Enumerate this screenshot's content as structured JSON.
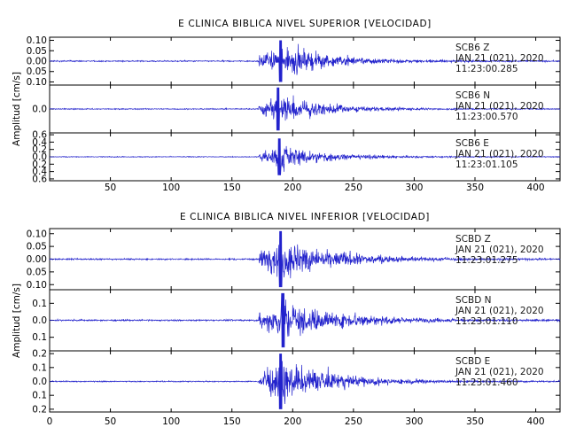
{
  "chart_data": [
    {
      "type": "line",
      "title": "E CLINICA BIBLICA NIVEL SUPERIOR [VELOCIDAD]",
      "ylabel": "Amplitud [cm/s]",
      "xlabel": "",
      "xlim": [
        0,
        420
      ],
      "x_ticks": [
        50,
        100,
        150,
        200,
        250,
        300,
        350,
        400
      ],
      "grid": false,
      "panels": [
        {
          "component": "Z",
          "ylim": [
            -0.115,
            0.115
          ],
          "y_ticks": [
            -0.1,
            -0.05,
            0.0,
            0.05,
            0.1
          ],
          "y_tick_labels": [
            "0.10",
            "0.05",
            "0.00",
            "0.05",
            "0.10"
          ],
          "annotation": [
            "SCB6   Z",
            "JAN 21 (021), 2020",
            "11:23:00.285"
          ],
          "waveform": {
            "noise": 0.004,
            "onset": 172,
            "peak_time": 190,
            "peak_amplitude": 0.1,
            "decay_end": 320
          }
        },
        {
          "component": "N",
          "ylim": [
            -0.2,
            0.2
          ],
          "y_ticks": [
            0.0
          ],
          "y_tick_labels": [
            "0.0"
          ],
          "annotation": [
            "SCB6   N",
            "JAN 21 (021), 2020",
            "11:23:00.570"
          ],
          "waveform": {
            "noise": 0.006,
            "onset": 172,
            "peak_time": 188,
            "peak_amplitude": 0.18,
            "decay_end": 300
          }
        },
        {
          "component": "E",
          "ylim": [
            -0.65,
            0.65
          ],
          "y_ticks": [
            -0.6,
            -0.4,
            -0.2,
            0.0,
            0.2,
            0.4,
            0.6
          ],
          "y_tick_labels": [
            "0.6",
            "0.4",
            "0.2",
            "0.0",
            "0.2",
            "0.4",
            "0.6"
          ],
          "annotation": [
            "SCB6   E",
            "JAN 21 (021), 2020",
            "11:23:01.105"
          ],
          "waveform": {
            "noise": 0.015,
            "onset": 172,
            "peak_time": 189,
            "peak_amplitude": 0.5,
            "decay_end": 300
          }
        }
      ]
    },
    {
      "type": "line",
      "title": "E CLINICA BIBLICA NIVEL INFERIOR [VELOCIDAD]",
      "ylabel": "Amplitud [cm/s]",
      "xlabel": "",
      "xlim": [
        0,
        420
      ],
      "x_ticks": [
        0,
        50,
        100,
        150,
        200,
        250,
        300,
        350,
        400
      ],
      "grid": false,
      "panels": [
        {
          "component": "Z",
          "ylim": [
            -0.12,
            0.12
          ],
          "y_ticks": [
            -0.1,
            -0.05,
            0.0,
            0.05,
            0.1
          ],
          "y_tick_labels": [
            "0.10",
            "0.05",
            "0.00",
            "0.05",
            "0.10"
          ],
          "annotation": [
            "SCBD   Z",
            "JAN 21 (021), 2020",
            "11:23:01.275"
          ],
          "waveform": {
            "noise": 0.004,
            "onset": 172,
            "peak_time": 190,
            "peak_amplitude": 0.11,
            "decay_end": 330
          }
        },
        {
          "component": "N",
          "ylim": [
            -0.18,
            0.18
          ],
          "y_ticks": [
            -0.1,
            0.0,
            0.1
          ],
          "y_tick_labels": [
            "0.1",
            "0.0",
            "0.1"
          ],
          "annotation": [
            "SCBD   N",
            "JAN 21 (021), 2020",
            "11:23:01.110"
          ],
          "waveform": {
            "noise": 0.006,
            "onset": 172,
            "peak_time": 192,
            "peak_amplitude": 0.16,
            "decay_end": 340
          }
        },
        {
          "component": "E",
          "ylim": [
            -0.22,
            0.22
          ],
          "y_ticks": [
            -0.2,
            -0.1,
            0.0,
            0.1,
            0.2
          ],
          "y_tick_labels": [
            "0.2",
            "0.1",
            "0.0",
            "0.1",
            "0.2"
          ],
          "annotation": [
            "SCBD   E",
            "JAN 21 (021), 2020",
            "11:23:01.460"
          ],
          "waveform": {
            "noise": 0.006,
            "onset": 172,
            "peak_time": 190,
            "peak_amplitude": 0.2,
            "decay_end": 330
          }
        }
      ]
    }
  ],
  "colors": {
    "trace": "#2222cc",
    "axis": "#000000",
    "annotation_text": "#1a1a1a",
    "background": "#ffffff"
  }
}
